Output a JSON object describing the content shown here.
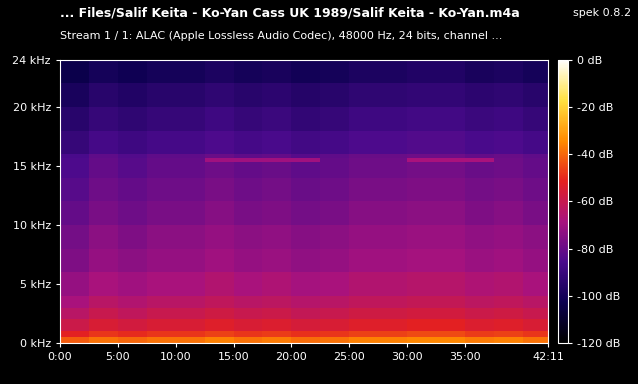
{
  "chart_data": {
    "type": "heatmap",
    "title": "... Files/Salif Keita - Ko-Yan Cass UK 1989/Salif Keita - Ko-Yan.m4a",
    "subtitle": "Stream 1 / 1: ALAC (Apple Lossless Audio Codec), 48000 Hz, 24 bits, channel ...",
    "annotations": [
      "spek 0.8.2"
    ],
    "xlim": [
      0,
      2531
    ],
    "xticks": [
      {
        "value": 0,
        "label": "0:00"
      },
      {
        "value": 300,
        "label": "5:00"
      },
      {
        "value": 600,
        "label": "10:00"
      },
      {
        "value": 900,
        "label": "15:00"
      },
      {
        "value": 1200,
        "label": "20:00"
      },
      {
        "value": 1500,
        "label": "25:00"
      },
      {
        "value": 1800,
        "label": "30:00"
      },
      {
        "value": 2100,
        "label": "35:00"
      },
      {
        "value": 2531,
        "label": "42:11"
      }
    ],
    "ylim": [
      0,
      24
    ],
    "yticks": [
      {
        "value": 0,
        "label": "0 kHz"
      },
      {
        "value": 5,
        "label": "5 kHz"
      },
      {
        "value": 10,
        "label": "10 kHz"
      },
      {
        "value": 15,
        "label": "15 kHz"
      },
      {
        "value": 20,
        "label": "20 kHz"
      },
      {
        "value": 24,
        "label": "24 kHz"
      }
    ],
    "x_edges": [
      0,
      150,
      300,
      450,
      600,
      750,
      900,
      1050,
      1200,
      1350,
      1500,
      1650,
      1800,
      1950,
      2100,
      2250,
      2400,
      2531
    ],
    "y_edges": [
      0,
      0.5,
      1,
      2,
      3,
      4,
      6,
      8,
      10,
      12,
      14,
      15.3,
      15.7,
      16,
      18,
      20,
      22,
      24
    ],
    "cells": [
      [
        -42,
        -38,
        -40,
        -38,
        -38,
        -36,
        -38,
        -37,
        -39,
        -38,
        -36,
        -36,
        -35,
        -35,
        -37,
        -36,
        -38
      ],
      [
        -52,
        -48,
        -50,
        -48,
        -48,
        -46,
        -48,
        -47,
        -49,
        -48,
        -46,
        -46,
        -45,
        -45,
        -47,
        -46,
        -48
      ],
      [
        -59,
        -55,
        -57,
        -55,
        -55,
        -53,
        -55,
        -54,
        -56,
        -55,
        -53,
        -53,
        -52,
        -52,
        -54,
        -53,
        -55
      ],
      [
        -64,
        -60,
        -62,
        -60,
        -60,
        -58,
        -60,
        -59,
        -61,
        -60,
        -58,
        -58,
        -57,
        -57,
        -59,
        -58,
        -60
      ],
      [
        -68,
        -64,
        -66,
        -64,
        -64,
        -62,
        -64,
        -63,
        -65,
        -64,
        -62,
        -62,
        -61,
        -61,
        -63,
        -62,
        -64
      ],
      [
        -72,
        -68,
        -70,
        -68,
        -68,
        -66,
        -68,
        -67,
        -69,
        -68,
        -66,
        -66,
        -65,
        -65,
        -67,
        -66,
        -68
      ],
      [
        -76,
        -72,
        -74,
        -72,
        -72,
        -70,
        -72,
        -71,
        -73,
        -72,
        -70,
        -70,
        -69,
        -69,
        -71,
        -70,
        -72
      ],
      [
        -78,
        -74,
        -76,
        -74,
        -74,
        -72,
        -74,
        -73,
        -75,
        -74,
        -72,
        -72,
        -71,
        -71,
        -73,
        -72,
        -74
      ],
      [
        -81,
        -77,
        -79,
        -77,
        -77,
        -75,
        -77,
        -76,
        -78,
        -77,
        -75,
        -75,
        -74,
        -74,
        -76,
        -75,
        -77
      ],
      [
        -83,
        -79,
        -81,
        -79,
        -79,
        -77,
        -79,
        -78,
        -80,
        -79,
        -77,
        -77,
        -76,
        -76,
        -78,
        -77,
        -79
      ],
      [
        -85,
        -81,
        -83,
        -81,
        -81,
        -79,
        -81,
        -80,
        -82,
        -81,
        -79,
        -79,
        -78,
        -78,
        -80,
        -79,
        -81
      ],
      [
        -85,
        -81,
        -83,
        -81,
        -81,
        -70,
        -70,
        -70,
        -70,
        -81,
        -79,
        -79,
        -68,
        -68,
        -68,
        -79,
        -81
      ],
      [
        -86,
        -82,
        -84,
        -82,
        -82,
        -80,
        -82,
        -81,
        -83,
        -82,
        -80,
        -80,
        -79,
        -79,
        -81,
        -80,
        -82
      ],
      [
        -91,
        -87,
        -89,
        -87,
        -87,
        -85,
        -87,
        -86,
        -88,
        -87,
        -85,
        -85,
        -84,
        -84,
        -86,
        -85,
        -87
      ],
      [
        -95,
        -91,
        -93,
        -91,
        -91,
        -89,
        -91,
        -90,
        -92,
        -91,
        -89,
        -89,
        -88,
        -88,
        -90,
        -89,
        -91
      ],
      [
        -99,
        -95,
        -97,
        -95,
        -95,
        -93,
        -95,
        -94,
        -96,
        -95,
        -93,
        -93,
        -92,
        -92,
        -94,
        -93,
        -95
      ],
      [
        -104,
        -100,
        -102,
        -100,
        -100,
        -98,
        -100,
        -99,
        -101,
        -100,
        -98,
        -98,
        -97,
        -97,
        -99,
        -98,
        -100
      ]
    ],
    "colorbar_range": [
      -120,
      0
    ],
    "colorbar_ticks": [
      {
        "value": 0,
        "label": "0 dB"
      },
      {
        "value": -20,
        "label": "-20 dB"
      },
      {
        "value": -40,
        "label": "-40 dB"
      },
      {
        "value": -60,
        "label": "-60 dB"
      },
      {
        "value": -80,
        "label": "-80 dB"
      },
      {
        "value": -100,
        "label": "-100 dB"
      },
      {
        "value": -120,
        "label": "-120 dB"
      }
    ]
  }
}
